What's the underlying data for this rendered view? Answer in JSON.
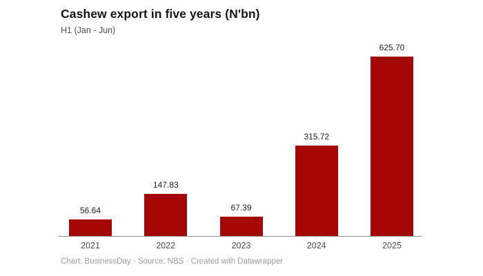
{
  "header": {
    "title": "Cashew export in five years (N'bn)",
    "subtitle": "H1 (Jan - Jun)"
  },
  "footer": {
    "text": "Chart: BusinessDay · Source: NBS · Created with Datawrapper"
  },
  "colors": {
    "bar": "#a40707",
    "axis_line": "#8f8f8f",
    "value_label": "#222222",
    "tick_label": "#4f4f4f",
    "footer_text": "#9c9c9c"
  },
  "chart_data": {
    "type": "bar",
    "title": "Cashew export in five years (N'bn)",
    "subtitle": "H1 (Jan - Jun)",
    "categories": [
      "2021",
      "2022",
      "2023",
      "2024",
      "2025"
    ],
    "values": [
      56.64,
      147.83,
      67.39,
      315.72,
      625.7
    ],
    "value_labels": [
      "56.64",
      "147.83",
      "67.39",
      "315.72",
      "625.70"
    ],
    "xlabel": "",
    "ylabel": "",
    "ylim": [
      0,
      625.7
    ],
    "grid": false,
    "legend": false,
    "baseline_axis": true
  }
}
